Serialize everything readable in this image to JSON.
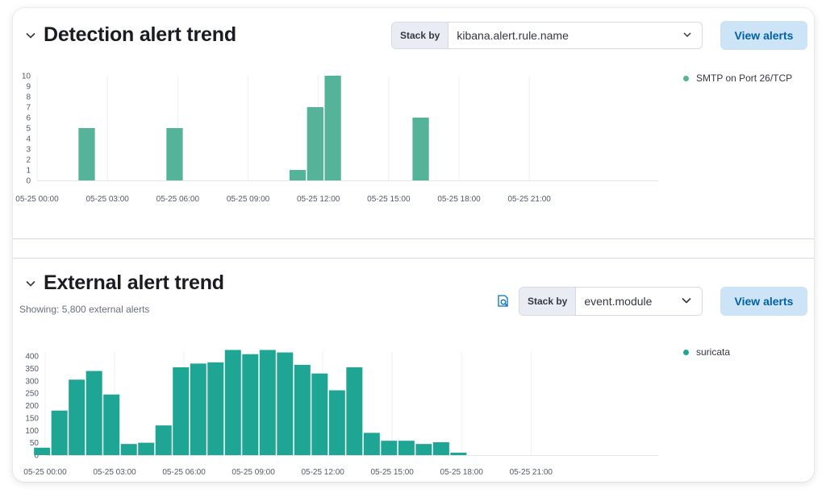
{
  "detection": {
    "title": "Detection alert trend",
    "stack_by_label": "Stack by",
    "stack_by_value": "kibana.alert.rule.name",
    "view_alerts_label": "View alerts",
    "legend": [
      {
        "label": "SMTP on Port 26/TCP",
        "color": "#54b399"
      }
    ]
  },
  "external": {
    "title": "External alert trend",
    "showing_text": "Showing: 5,800 external alerts",
    "stack_by_label": "Stack by",
    "stack_by_value": "event.module",
    "view_alerts_label": "View alerts",
    "legend": [
      {
        "label": "suricata",
        "color": "#1ea593"
      }
    ]
  },
  "chart_data": [
    {
      "type": "bar",
      "x_unit": "hours since 05-25 00:00",
      "x_range": [
        0,
        26.5
      ],
      "bin_hours": 0.75,
      "x_ticks": [
        {
          "value": 0,
          "label": "05-25 00:00"
        },
        {
          "value": 3,
          "label": "05-25 03:00"
        },
        {
          "value": 6,
          "label": "05-25 06:00"
        },
        {
          "value": 9,
          "label": "05-25 09:00"
        },
        {
          "value": 12,
          "label": "05-25 12:00"
        },
        {
          "value": 15,
          "label": "05-25 15:00"
        },
        {
          "value": 18,
          "label": "05-25 18:00"
        },
        {
          "value": 21,
          "label": "05-25 21:00"
        }
      ],
      "y_ticks": [
        0,
        1,
        2,
        3,
        4,
        5,
        6,
        7,
        8,
        9,
        10
      ],
      "ylim": [
        0,
        10
      ],
      "color": "#54b399",
      "series": [
        {
          "name": "SMTP on Port 26/TCP",
          "points": [
            {
              "x": 1.75,
              "y": 5
            },
            {
              "x": 5.5,
              "y": 5
            },
            {
              "x": 10.75,
              "y": 1
            },
            {
              "x": 11.5,
              "y": 7
            },
            {
              "x": 12.25,
              "y": 10
            },
            {
              "x": 16.0,
              "y": 6
            }
          ]
        }
      ]
    },
    {
      "type": "bar",
      "x_unit": "hours since 05-25 00:00",
      "x_range": [
        0,
        26.5
      ],
      "bin_hours": 0.75,
      "bin_start": -0.5,
      "x_ticks": [
        {
          "value": 0,
          "label": "05-25 00:00"
        },
        {
          "value": 3,
          "label": "05-25 03:00"
        },
        {
          "value": 6,
          "label": "05-25 06:00"
        },
        {
          "value": 9,
          "label": "05-25 09:00"
        },
        {
          "value": 12,
          "label": "05-25 12:00"
        },
        {
          "value": 15,
          "label": "05-25 15:00"
        },
        {
          "value": 18,
          "label": "05-25 18:00"
        },
        {
          "value": 21,
          "label": "05-25 21:00"
        }
      ],
      "y_ticks": [
        0,
        50,
        100,
        150,
        200,
        250,
        300,
        350,
        400
      ],
      "ylim": [
        0,
        420
      ],
      "color": "#1ea593",
      "series": [
        {
          "name": "suricata",
          "values": [
            30,
            180,
            305,
            340,
            245,
            45,
            50,
            120,
            355,
            370,
            375,
            425,
            408,
            425,
            415,
            365,
            330,
            262,
            355,
            90,
            58,
            58,
            45,
            52,
            10
          ]
        }
      ]
    }
  ]
}
